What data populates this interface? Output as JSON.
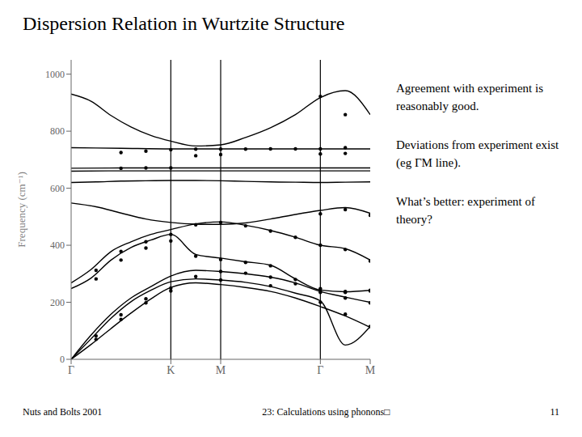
{
  "chart_data": {
    "type": "line",
    "title": "Dispersion Relation in Wurtzite Structure",
    "y_label": "Frequency (cm⁻¹)",
    "annotations": [
      "Agreement with experiment is reasonably good.",
      "Deviations from experiment exist (eg ΓM line).",
      "What’s better: experiment of theory?",
      "Nuts and Bolts 2001",
      "23: Calculations using phonons□",
      "11"
    ],
    "xlim": [
      0,
      3
    ],
    "xticks": [
      {
        "value": 0,
        "label": "Γ"
      },
      {
        "value": 1,
        "label": "K"
      },
      {
        "value": 1.5,
        "label": "M"
      },
      {
        "value": 2.5,
        "label": "Γ"
      },
      {
        "value": 3,
        "label": "M"
      }
    ],
    "ylim": [
      0,
      1050
    ],
    "yticks": [
      0,
      200,
      400,
      600,
      800,
      1000
    ],
    "grid": false,
    "vlines": [
      1,
      1.5,
      2.5
    ],
    "series": [
      {
        "type": "line",
        "color": "#000000",
        "x": [
          0,
          0.2,
          0.4,
          0.6,
          0.8,
          1.0,
          1.25,
          1.5,
          1.75,
          2.0,
          2.25,
          2.5,
          2.75,
          3.0
        ],
        "values": [
          930,
          905,
          855,
          815,
          785,
          765,
          748,
          752,
          778,
          812,
          858,
          918,
          942,
          858
        ]
      },
      {
        "type": "line",
        "color": "#000000",
        "x": [
          0,
          0.5,
          1.0,
          1.5,
          2.0,
          2.5,
          3.0
        ],
        "values": [
          742,
          740,
          738,
          738,
          738,
          738,
          738
        ]
      },
      {
        "type": "line",
        "color": "#000000",
        "x": [
          0,
          0.5,
          1.0,
          1.5,
          2.0,
          2.5,
          3.0
        ],
        "values": [
          670,
          671,
          671,
          671,
          671,
          671,
          671
        ]
      },
      {
        "type": "line",
        "color": "#000000",
        "x": [
          0,
          0.5,
          1.0,
          1.5,
          2.0,
          2.5,
          3.0
        ],
        "values": [
          660,
          661,
          661,
          661,
          661,
          661,
          661
        ]
      },
      {
        "type": "line",
        "color": "#000000",
        "x": [
          0,
          0.25,
          0.5,
          0.75,
          1.0,
          1.25,
          1.5,
          1.75,
          2.0,
          2.25,
          2.5,
          2.75,
          3.0
        ],
        "values": [
          620,
          622,
          625,
          626,
          627,
          627,
          626,
          624,
          622,
          621,
          620,
          621,
          622
        ]
      },
      {
        "type": "line",
        "color": "#000000",
        "x": [
          0,
          0.25,
          0.5,
          0.75,
          1.0,
          1.25,
          1.5,
          1.75,
          2.0,
          2.25,
          2.5,
          2.75,
          3.0
        ],
        "values": [
          548,
          535,
          513,
          492,
          480,
          474,
          473,
          478,
          492,
          508,
          522,
          532,
          512
        ]
      },
      {
        "type": "line",
        "color": "#000000",
        "x": [
          0,
          0.2,
          0.4,
          0.6,
          0.8,
          1.0,
          1.25,
          1.5,
          1.75,
          2.0,
          2.25,
          2.5,
          2.75,
          3.0
        ],
        "values": [
          268,
          315,
          378,
          412,
          438,
          455,
          475,
          482,
          470,
          452,
          428,
          400,
          388,
          348
        ]
      },
      {
        "type": "line",
        "color": "#000000",
        "x": [
          0,
          0.2,
          0.4,
          0.6,
          0.8,
          1.0,
          1.25,
          1.5,
          1.75,
          2.0,
          2.25,
          2.5,
          2.75,
          3.0
        ],
        "values": [
          248,
          285,
          348,
          392,
          418,
          438,
          368,
          355,
          342,
          330,
          282,
          243,
          237,
          242
        ]
      },
      {
        "type": "line",
        "color": "#000000",
        "x": [
          0,
          0.2,
          0.4,
          0.6,
          0.8,
          1.0,
          1.25,
          1.5,
          1.75,
          2.0,
          2.25,
          2.5,
          2.75,
          3.0
        ],
        "values": [
          0,
          85,
          158,
          215,
          255,
          292,
          312,
          308,
          300,
          288,
          268,
          238,
          218,
          200
        ]
      },
      {
        "type": "line",
        "color": "#000000",
        "x": [
          0,
          0.2,
          0.4,
          0.6,
          0.8,
          1.0,
          1.25,
          1.5,
          1.75,
          2.0,
          2.25,
          2.5,
          2.75,
          3.0
        ],
        "values": [
          0,
          72,
          144,
          202,
          242,
          272,
          282,
          278,
          270,
          255,
          232,
          205,
          50,
          115
        ]
      },
      {
        "type": "line",
        "color": "#000000",
        "x": [
          0,
          0.2,
          0.4,
          0.6,
          0.8,
          1.0,
          1.25,
          1.5,
          1.75,
          2.0,
          2.25,
          2.5,
          2.75,
          3.0
        ],
        "values": [
          0,
          52,
          108,
          162,
          212,
          252,
          268,
          262,
          252,
          238,
          215,
          185,
          152,
          112
        ]
      },
      {
        "type": "scatter",
        "color": "#000000",
        "x": [
          0.5,
          0.75,
          1.0,
          1.25,
          1.5,
          1.75,
          2.0,
          2.25,
          2.5,
          2.75
        ],
        "values": [
          725,
          730,
          735,
          737,
          737,
          737,
          738,
          738,
          738,
          742
        ]
      },
      {
        "type": "scatter",
        "color": "#000000",
        "x": [
          1.25,
          1.5,
          2.5,
          2.75
        ],
        "values": [
          714,
          718,
          720,
          722
        ]
      },
      {
        "type": "scatter",
        "color": "#000000",
        "x": [
          0.5,
          0.75,
          1.0
        ],
        "values": [
          670,
          671,
          671
        ]
      },
      {
        "type": "scatter",
        "color": "#000000",
        "x": [
          0.25,
          0.5,
          0.75,
          1.0,
          1.25,
          1.5,
          1.75,
          2.0,
          2.25,
          2.5,
          2.75,
          3.0
        ],
        "values": [
          312,
          378,
          412,
          438,
          472,
          480,
          468,
          450,
          428,
          400,
          385,
          345
        ]
      },
      {
        "type": "scatter",
        "color": "#000000",
        "x": [
          0.25,
          0.5,
          0.75,
          1.0,
          1.25,
          1.5,
          1.75,
          2.0,
          2.25,
          2.5,
          2.75,
          3.0
        ],
        "values": [
          282,
          348,
          390,
          415,
          362,
          350,
          340,
          328,
          280,
          242,
          235,
          240
        ]
      },
      {
        "type": "scatter",
        "color": "#000000",
        "x": [
          0.25,
          0.5,
          0.75,
          1.0,
          1.25,
          1.5,
          1.75,
          2.0,
          2.25,
          2.5,
          2.75,
          3.0
        ],
        "values": [
          82,
          156,
          212,
          250,
          290,
          308,
          302,
          288,
          265,
          235,
          215,
          198
        ]
      },
      {
        "type": "scatter",
        "color": "#000000",
        "x": [
          0.25,
          0.5,
          0.75,
          1.0,
          1.5,
          2.0,
          2.5,
          2.75,
          3.0
        ],
        "values": [
          70,
          140,
          198,
          240,
          278,
          258,
          200,
          158,
          115
        ]
      },
      {
        "type": "scatter",
        "color": "#000000",
        "x": [
          2.5,
          2.75,
          3.0
        ],
        "values": [
          510,
          525,
          505
        ]
      },
      {
        "type": "scatter",
        "color": "#000000",
        "x": [
          2.5,
          2.75
        ],
        "values": [
          922,
          858
        ]
      },
      {
        "type": "scatter",
        "color": "#000000",
        "x": [
          2.5,
          2.75,
          3.0
        ],
        "values": [
          248,
          238,
          242
        ]
      }
    ]
  }
}
